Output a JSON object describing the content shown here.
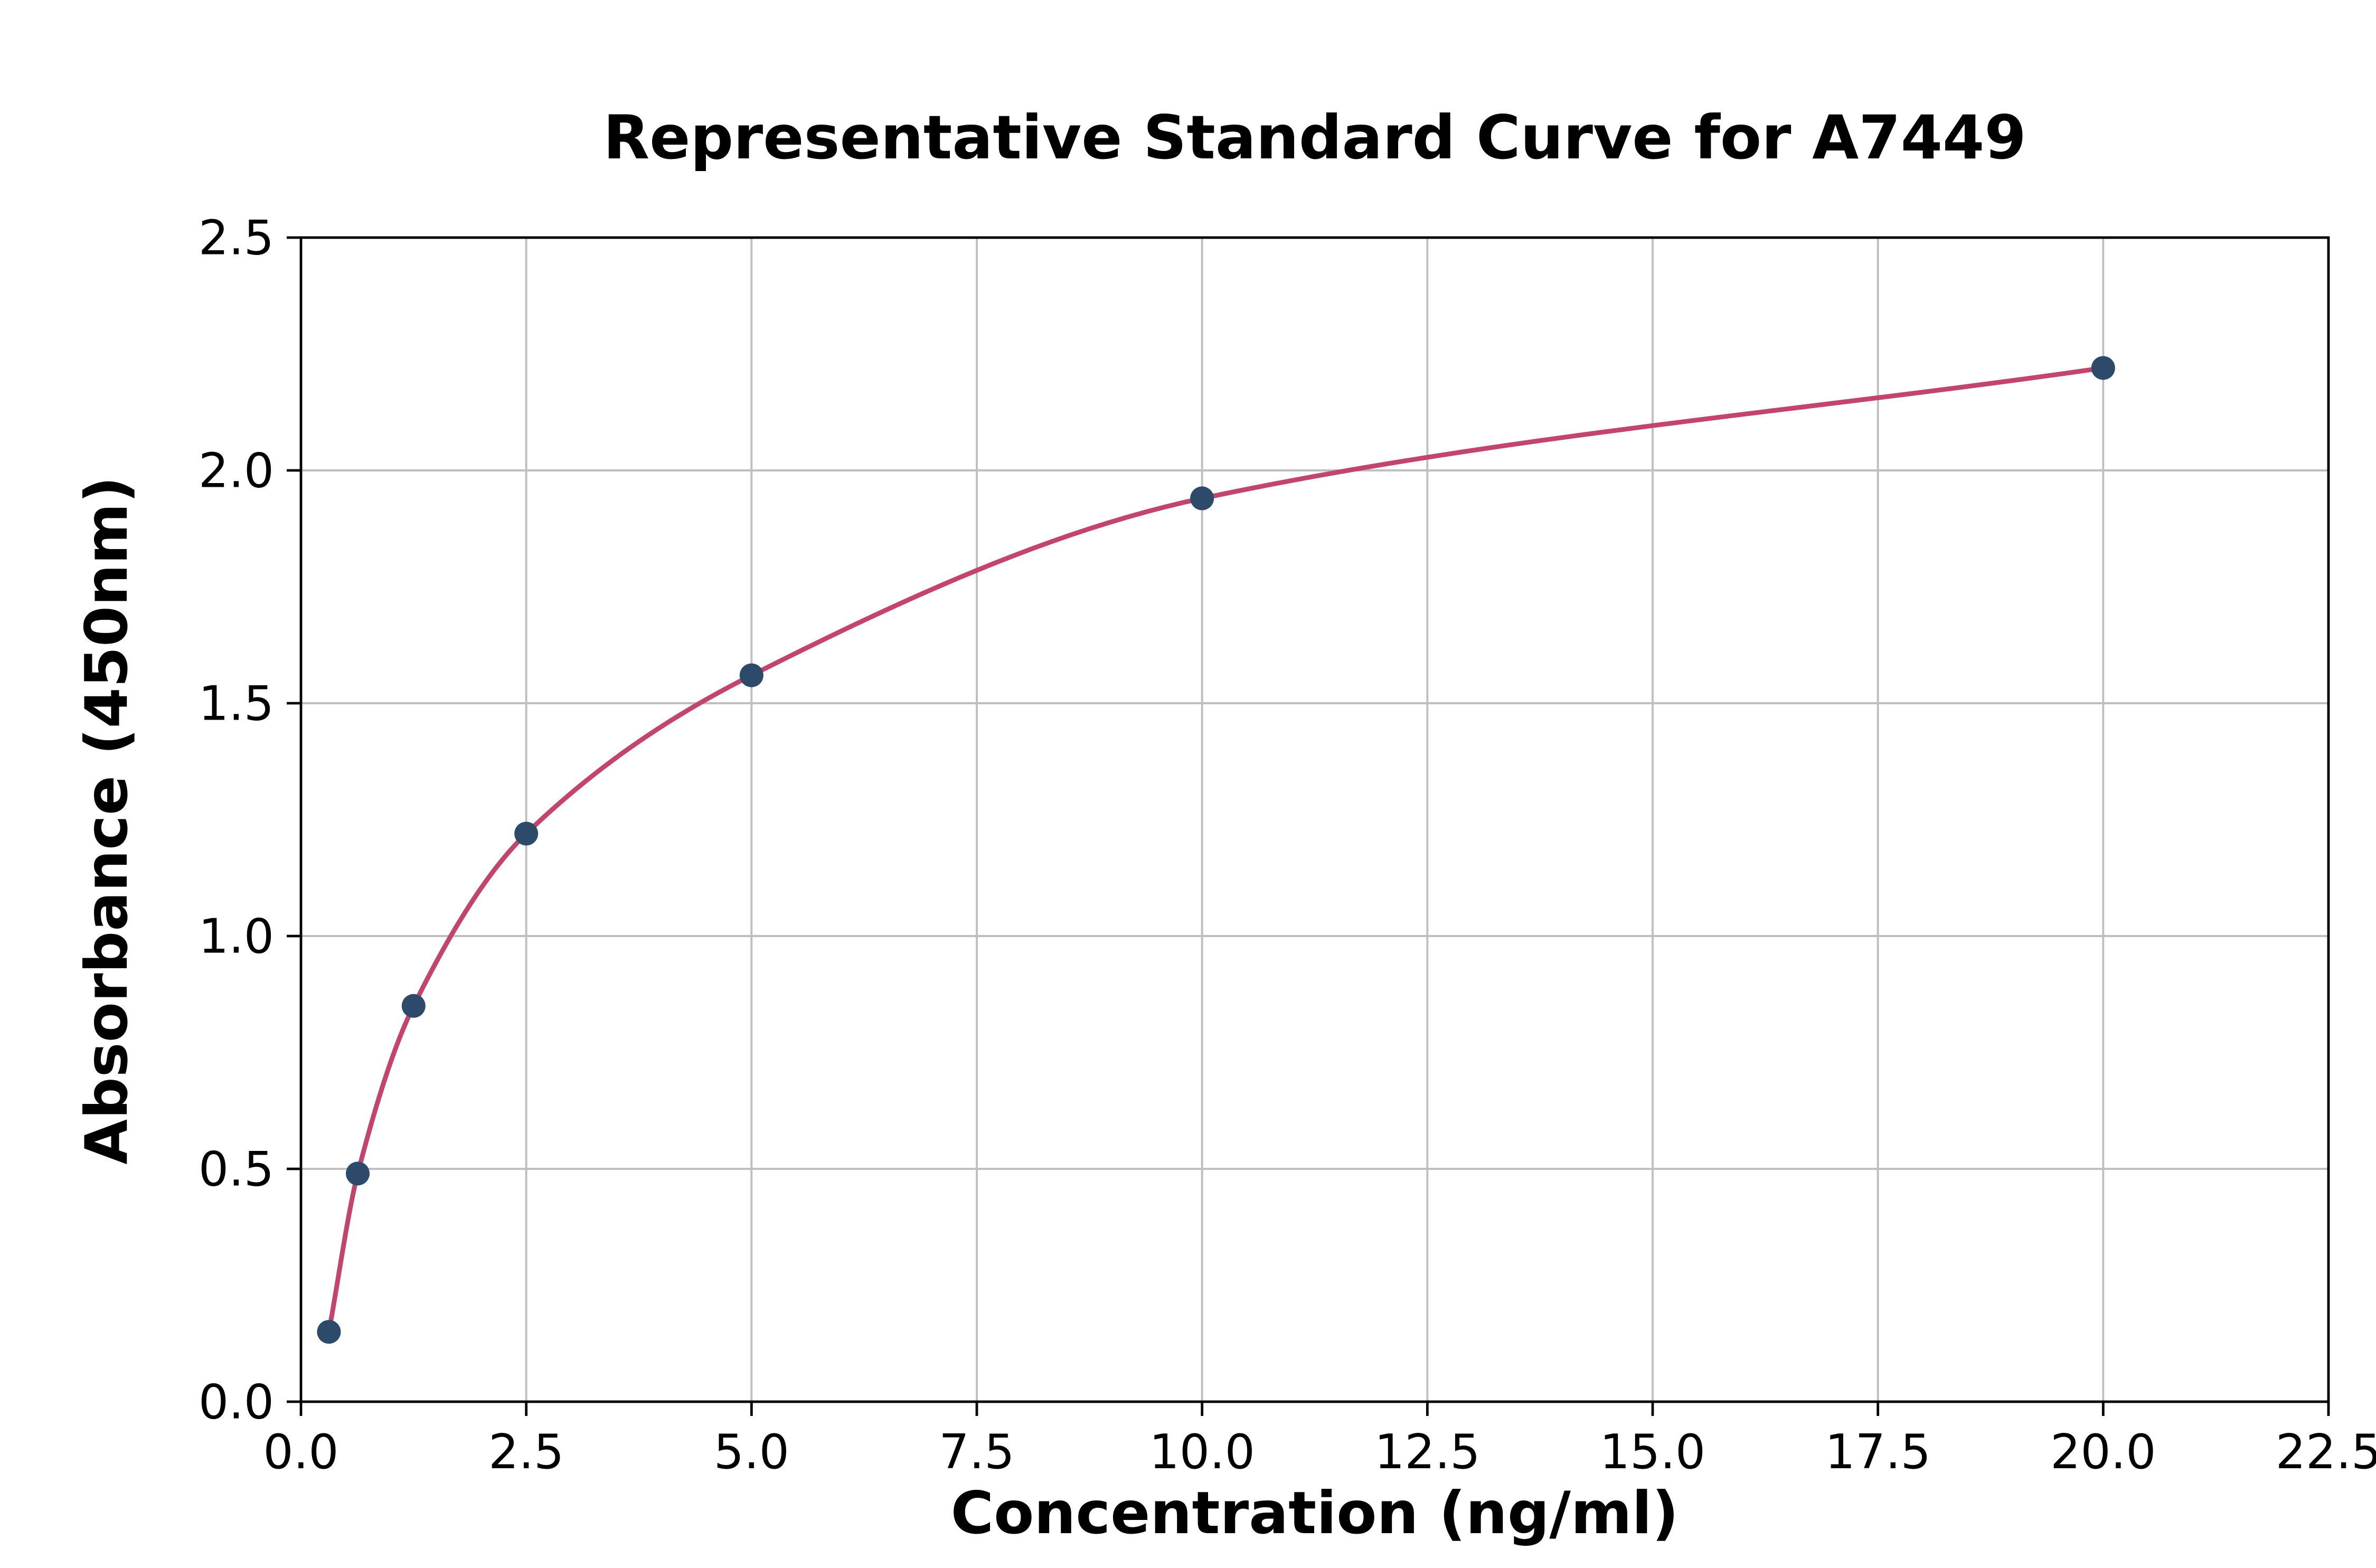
{
  "chart_data": {
    "type": "scatter",
    "title": "Representative Standard Curve for A7449",
    "xlabel": "Concentration (ng/ml)",
    "ylabel": "Absorbance (450nm)",
    "xlim": [
      0,
      22.5
    ],
    "ylim": [
      0,
      2.5
    ],
    "x_ticks": [
      0,
      2.5,
      5,
      7.5,
      10,
      12.5,
      15,
      17.5,
      20,
      22.5
    ],
    "x_tick_labels": [
      "0.0",
      "2.5",
      "5.0",
      "7.5",
      "10.0",
      "12.5",
      "15.0",
      "17.5",
      "20.0",
      "22.5"
    ],
    "y_ticks": [
      0,
      0.5,
      1,
      1.5,
      2,
      2.5
    ],
    "y_tick_labels": [
      "0.0",
      "0.5",
      "1.0",
      "1.5",
      "2.0",
      "2.5"
    ],
    "grid": true,
    "legend": "none",
    "colors": {
      "curve": "#c2456e",
      "marker": "#2e4a6b",
      "grid": "#bfbfbf",
      "axis": "#000000",
      "background": "#ffffff"
    },
    "series": [
      {
        "name": "fit-curve",
        "type": "line",
        "interpolation": "monotone",
        "x": [
          0.31,
          0.63,
          1.25,
          2.5,
          5.0,
          10.0,
          20.0
        ],
        "y": [
          0.15,
          0.49,
          0.85,
          1.22,
          1.56,
          1.94,
          2.22
        ]
      },
      {
        "name": "standard-points",
        "type": "scatter",
        "x": [
          0.31,
          0.63,
          1.25,
          2.5,
          5.0,
          10.0,
          20.0
        ],
        "y": [
          0.15,
          0.49,
          0.85,
          1.22,
          1.56,
          1.94,
          2.22
        ]
      }
    ]
  }
}
